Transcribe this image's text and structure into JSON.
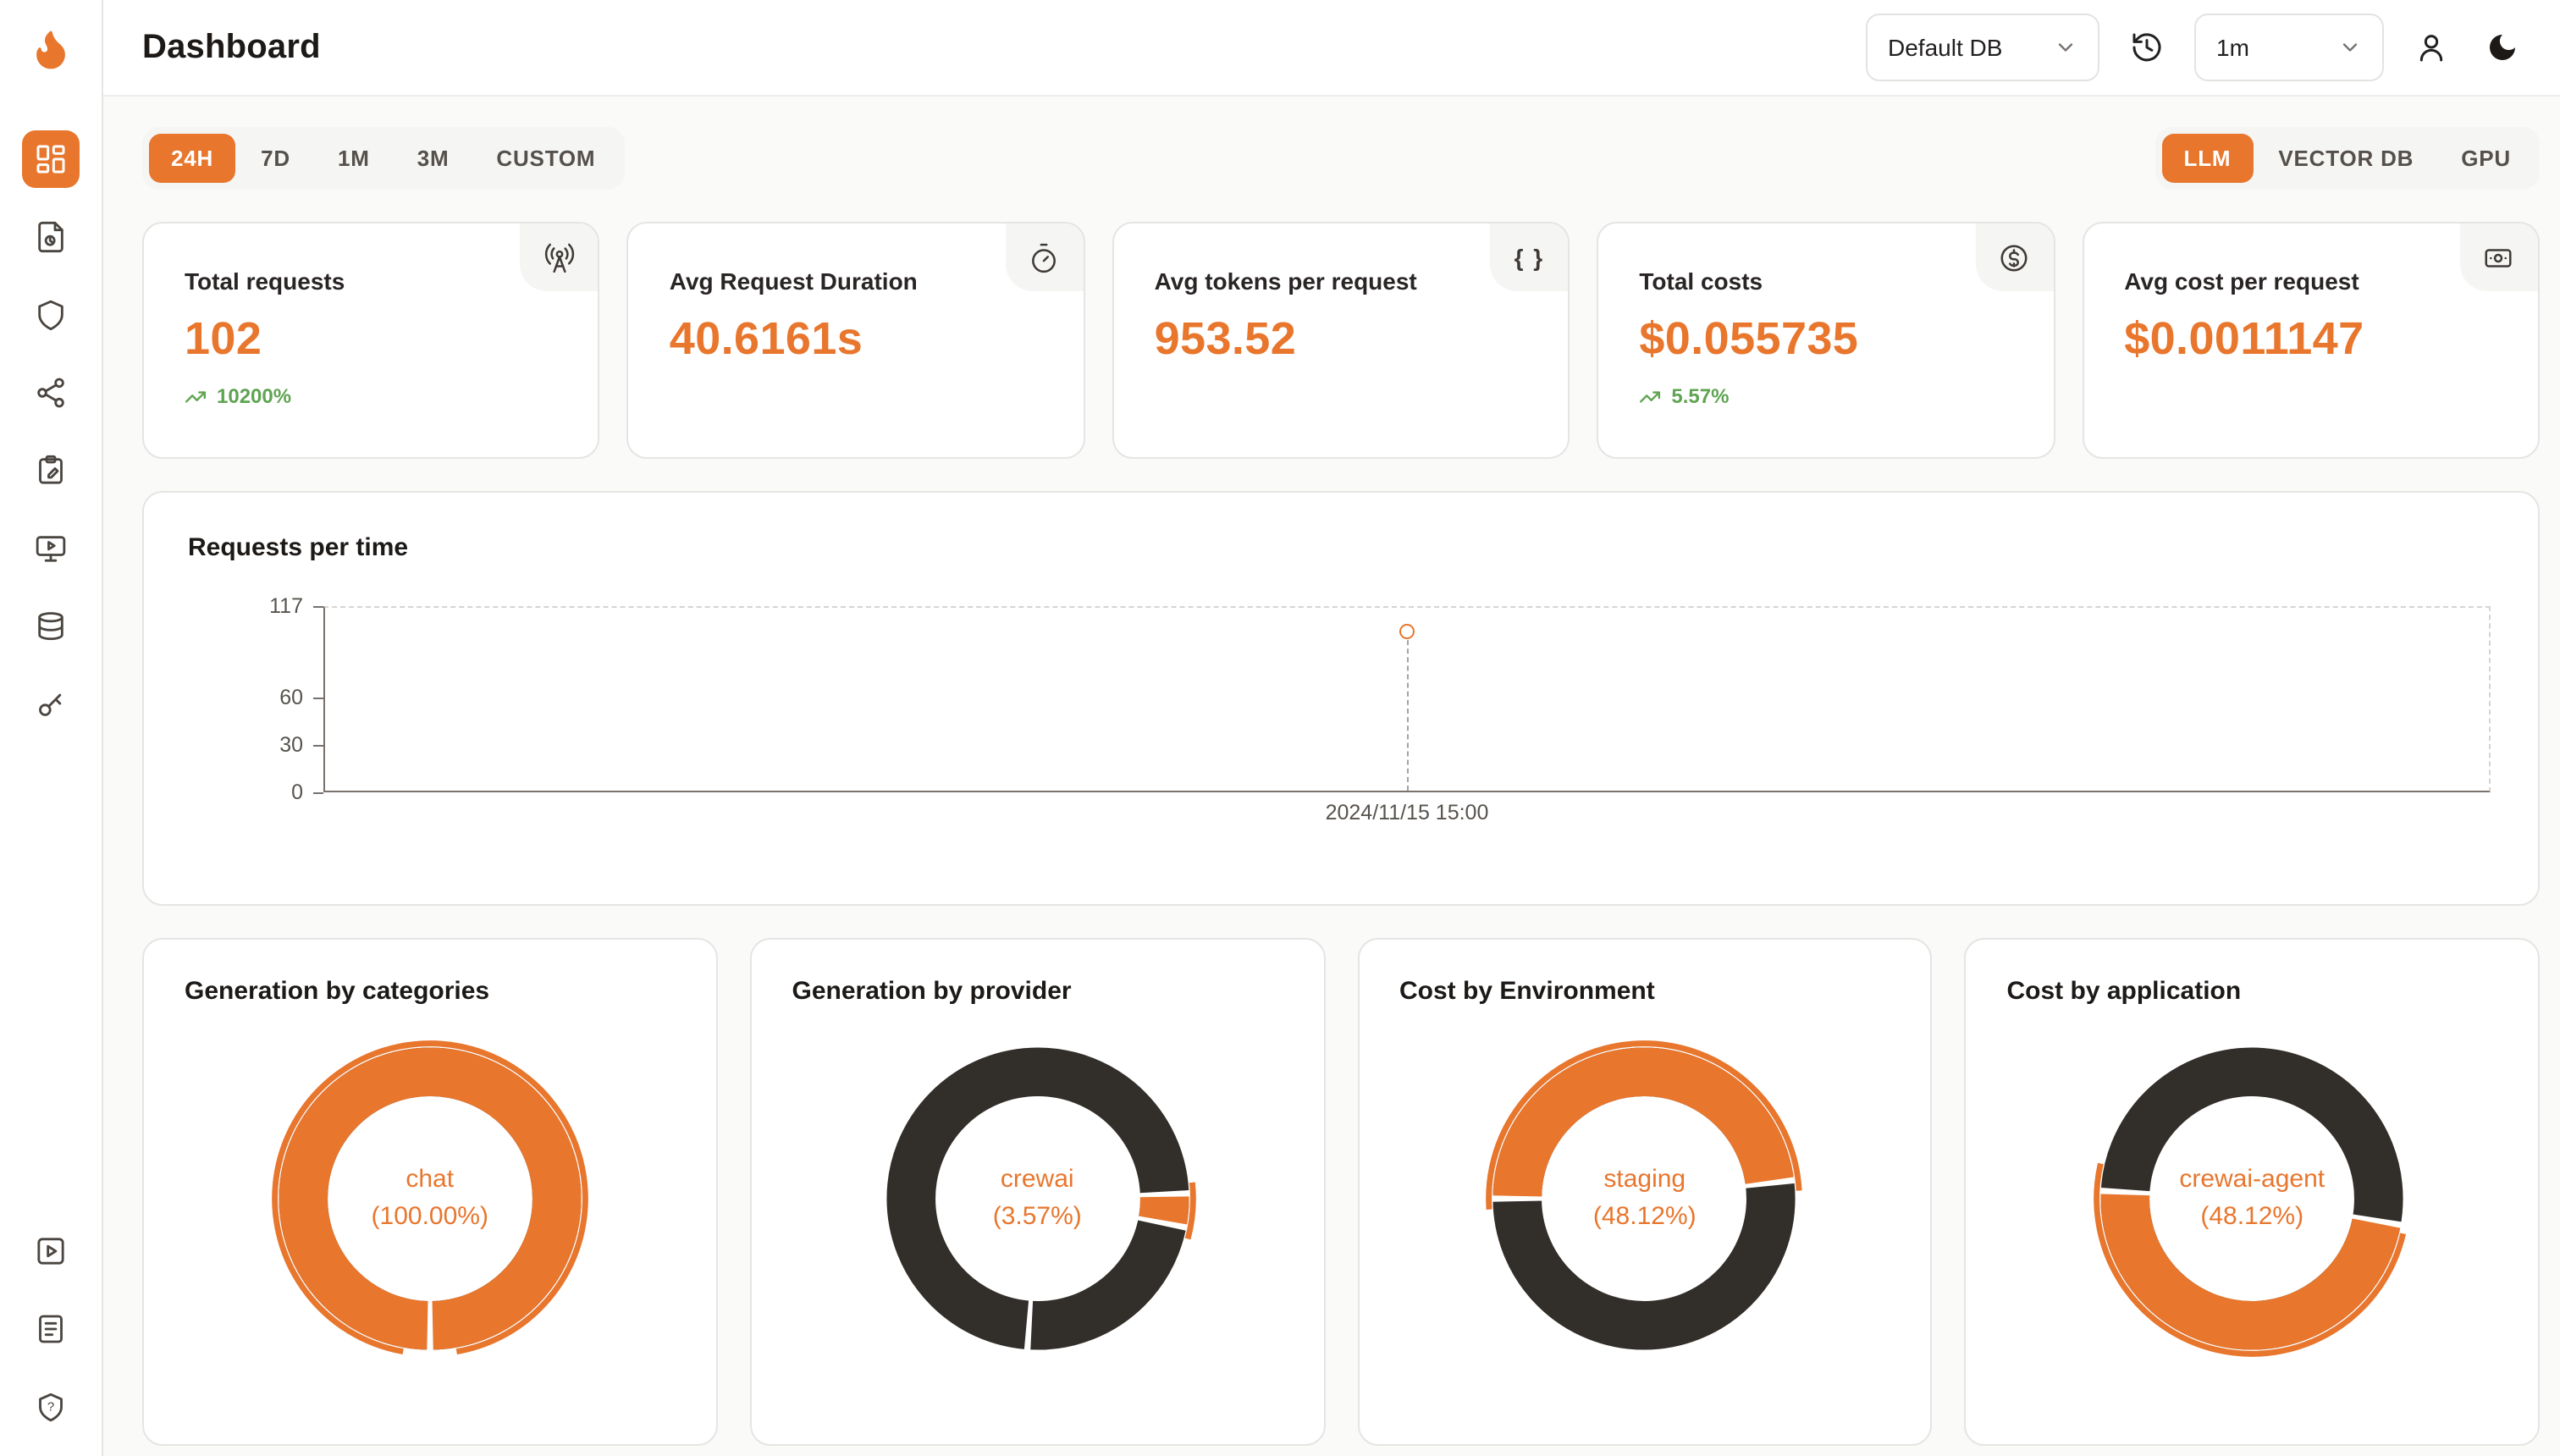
{
  "app": {
    "title": "Dashboard"
  },
  "theme": {
    "accent": "#E8762D",
    "accent_dark": "#322E29",
    "positive": "#5FA452",
    "background": "#FAFAF9",
    "card_border": "#E7E5E4"
  },
  "header": {
    "db_select": "Default DB",
    "interval_select": "1m",
    "icons": [
      "history-icon",
      "user-icon",
      "moon-icon"
    ]
  },
  "toolbar": {
    "time_ranges": [
      "24H",
      "7D",
      "1M",
      "3M",
      "CUSTOM"
    ],
    "active_time_range": "24H",
    "modes": [
      "LLM",
      "VECTOR DB",
      "GPU"
    ],
    "active_mode": "LLM"
  },
  "stats": [
    {
      "label": "Total requests",
      "value": "102",
      "delta": "10200%",
      "icon": "radio-tower"
    },
    {
      "label": "Avg Request Duration",
      "value": "40.6161s",
      "icon": "timer"
    },
    {
      "label": "Avg tokens per request",
      "value": "953.52",
      "icon": "braces"
    },
    {
      "label": "Total costs",
      "value": "$0.055735",
      "delta": "5.57%",
      "icon": "circle-dollar"
    },
    {
      "label": "Avg cost per request",
      "value": "$0.0011147",
      "icon": "banknote"
    }
  ],
  "chart_data": [
    {
      "type": "line",
      "title": "Requests per time",
      "x": [
        "2024/11/15 15:00"
      ],
      "series": [
        {
          "name": "Requests",
          "values": [
            102
          ]
        }
      ],
      "ylim": [
        0,
        117
      ],
      "yticks": [
        0,
        30,
        60,
        117
      ],
      "grid": "dashed-frame",
      "legend": "none"
    },
    {
      "type": "pie",
      "title": "Generation by categories",
      "slices": [
        {
          "label": "chat",
          "pct": 100.0
        }
      ],
      "center_label": "chat",
      "center_pct_text": "(100.00%)",
      "donut": {
        "accent_start_deg": -90,
        "outer_start_deg": 190,
        "outer_sweep_deg": 340,
        "gap_degs": [
          180
        ]
      }
    },
    {
      "type": "pie",
      "title": "Generation by provider",
      "slices": [
        {
          "label": "crewai",
          "pct": 3.57
        }
      ],
      "center_label": "crewai",
      "center_pct_text": "(3.57%)",
      "donut": {
        "accent_start_deg": 88,
        "outer_start_deg": 84,
        "outer_sweep_deg": 21,
        "gap_degs": [
          88,
          101,
          184
        ]
      }
    },
    {
      "type": "pie",
      "title": "Cost by Environment",
      "slices": [
        {
          "label": "staging",
          "pct": 48.12
        }
      ],
      "center_label": "staging",
      "center_pct_text": "(48.12%)",
      "donut": {
        "accent_start_deg": 270,
        "outer_start_deg": 266,
        "outer_sweep_deg": 181,
        "gap_degs": [
          270,
          83
        ]
      }
    },
    {
      "type": "pie",
      "title": "Cost by application",
      "slices": [
        {
          "label": "crewai-agent",
          "pct": 48.12
        }
      ],
      "center_label": "crewai-agent",
      "center_pct_text": "(48.12%)",
      "donut": {
        "accent_start_deg": 100,
        "outer_start_deg": 103,
        "outer_sweep_deg": 180,
        "gap_degs": [
          100,
          273
        ]
      }
    }
  ]
}
